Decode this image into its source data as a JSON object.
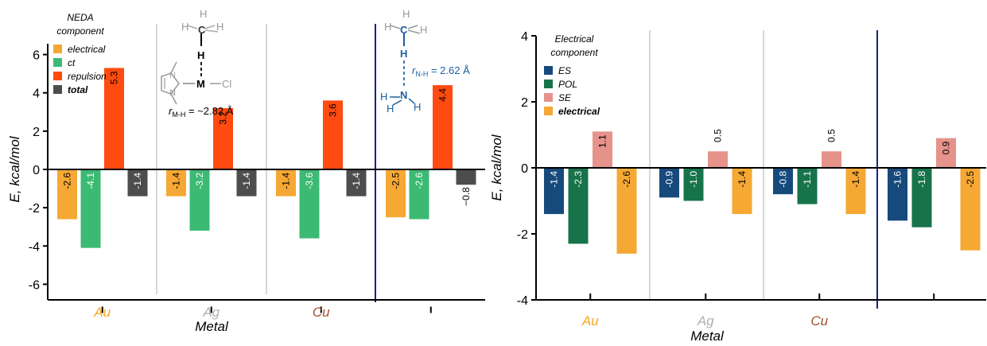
{
  "chart_data": [
    {
      "type": "bar",
      "xlabel": "Metal",
      "ylabel": "E, kcal/mol",
      "ylim": [
        -7.5,
        7.5
      ],
      "yticks": [
        -6,
        -4,
        -2,
        0,
        2,
        4,
        6
      ],
      "categories": [
        "Au",
        "Ag",
        "Cu",
        ""
      ],
      "category_colors": [
        "#f5a623",
        "#b0b0b0",
        "#a0522d",
        "#000000"
      ],
      "legend": {
        "title": "NEDA component",
        "placement": "top-left",
        "items": [
          "electrical",
          "ct",
          "repulsion",
          "total"
        ]
      },
      "series": [
        {
          "name": "electrical",
          "color": "#f5a833",
          "values": [
            -2.6,
            -1.4,
            -1.4,
            -2.5
          ]
        },
        {
          "name": "ct",
          "color": "#3cba74",
          "values": [
            -4.1,
            -3.2,
            -3.6,
            -2.6
          ]
        },
        {
          "name": "repulsion",
          "color": "#ff4a10",
          "values": [
            5.3,
            3.2,
            3.6,
            4.4
          ]
        },
        {
          "name": "total",
          "color": "#4d4d4d",
          "values": [
            -1.4,
            -1.4,
            -1.4,
            -0.8
          ]
        }
      ],
      "data_labels": [
        [
          "-2.6",
          "-1.4",
          "-1.4",
          "-2.5"
        ],
        [
          "-4.1",
          "-3.2",
          "-3.6",
          "-2.6"
        ],
        [
          "5.3",
          "3.2",
          "3.6",
          "4.4"
        ],
        [
          "-1.4",
          "-1.4",
          "-1.4",
          "−0.8"
        ]
      ],
      "annotations": {
        "metal_complex": {
          "atoms": [
            "H",
            "H",
            "C",
            "H",
            "H",
            "M",
            "Cl",
            "N",
            "N"
          ],
          "distance_label": "r",
          "distance_sub": "M-H",
          "distance_value": " = ~2.82 Å"
        },
        "ammonia_complex": {
          "atoms": [
            "H",
            "H",
            "C",
            "H",
            "H",
            "N",
            "H",
            "H",
            "H"
          ],
          "distance_label": "r",
          "distance_sub": "N-H",
          "distance_value": " = 2.62 Å"
        }
      }
    },
    {
      "type": "bar",
      "xlabel": "Metal",
      "ylabel": "E, kcal/mol",
      "ylim": [
        -4,
        4
      ],
      "yticks": [
        -4,
        -2,
        0,
        2,
        4
      ],
      "categories": [
        "Au",
        "Ag",
        "Cu",
        ""
      ],
      "category_colors": [
        "#f5a623",
        "#b0b0b0",
        "#a0522d",
        "#000000"
      ],
      "legend": {
        "title": "Electrical component",
        "placement": "top-left",
        "items": [
          "ES",
          "POL",
          "SE",
          "electrical"
        ]
      },
      "series": [
        {
          "name": "ES",
          "color": "#174a7c",
          "values": [
            -1.4,
            -0.9,
            -0.8,
            -1.6
          ]
        },
        {
          "name": "POL",
          "color": "#17734a",
          "values": [
            -2.3,
            -1.0,
            -1.1,
            -1.8
          ]
        },
        {
          "name": "SE",
          "color": "#e6938b",
          "values": [
            1.1,
            0.5,
            0.5,
            0.9
          ]
        },
        {
          "name": "electrical",
          "color": "#f5a833",
          "values": [
            -2.6,
            -1.4,
            -1.4,
            -2.5
          ]
        }
      ],
      "data_labels": [
        [
          "-1.4",
          "-0.9",
          "-0.8",
          "-1.6"
        ],
        [
          "-2.3",
          "-1.0",
          "-1.1",
          "-1.8"
        ],
        [
          "1.1",
          "0.5",
          "0.5",
          "0.9"
        ],
        [
          "-2.6",
          "-1.4",
          "-1.4",
          "-2.5"
        ]
      ]
    }
  ]
}
